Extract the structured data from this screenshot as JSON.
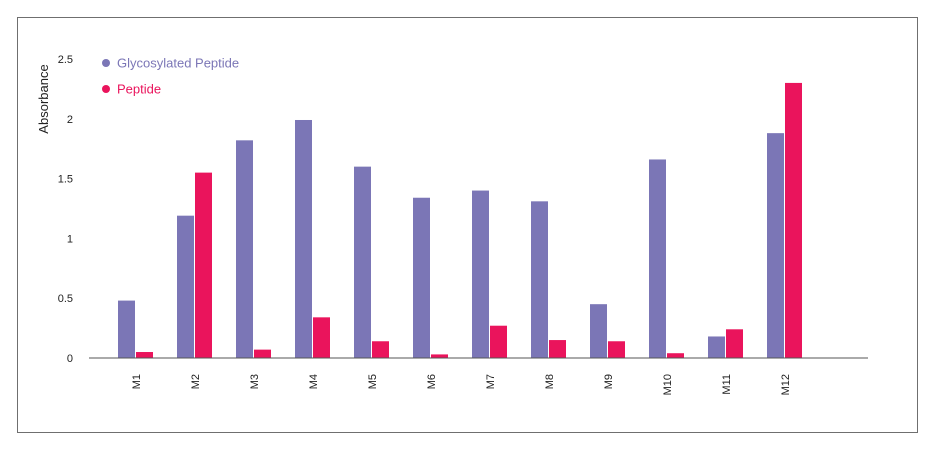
{
  "colors": {
    "glycosylated": "#7b76b6",
    "peptide": "#ea145c",
    "axis": "#555555"
  },
  "chart_data": {
    "type": "bar",
    "title": "",
    "xlabel": "",
    "ylabel": "Absorbance",
    "ylim": [
      0,
      2.5
    ],
    "yticks": [
      "0",
      "0.5",
      "1",
      "1.5",
      "2",
      "2.5"
    ],
    "ytick_values": [
      0,
      0.5,
      1,
      1.5,
      2,
      2.5
    ],
    "grid": false,
    "legend_position": "top-left",
    "categories": [
      "M1",
      "M2",
      "M3",
      "M4",
      "M5",
      "M6",
      "M7",
      "M8",
      "M9",
      "M10",
      "M11",
      "M12"
    ],
    "series": [
      {
        "name": "Glycosylated Peptide",
        "color": "#7b76b6",
        "values": [
          0.48,
          1.19,
          1.82,
          1.99,
          1.6,
          1.34,
          1.4,
          1.31,
          0.45,
          1.66,
          0.18,
          1.88
        ]
      },
      {
        "name": "Peptide",
        "color": "#ea145c",
        "values": [
          0.05,
          1.55,
          0.07,
          0.34,
          0.14,
          0.03,
          0.27,
          0.15,
          0.14,
          0.04,
          0.24,
          2.3
        ]
      }
    ]
  }
}
